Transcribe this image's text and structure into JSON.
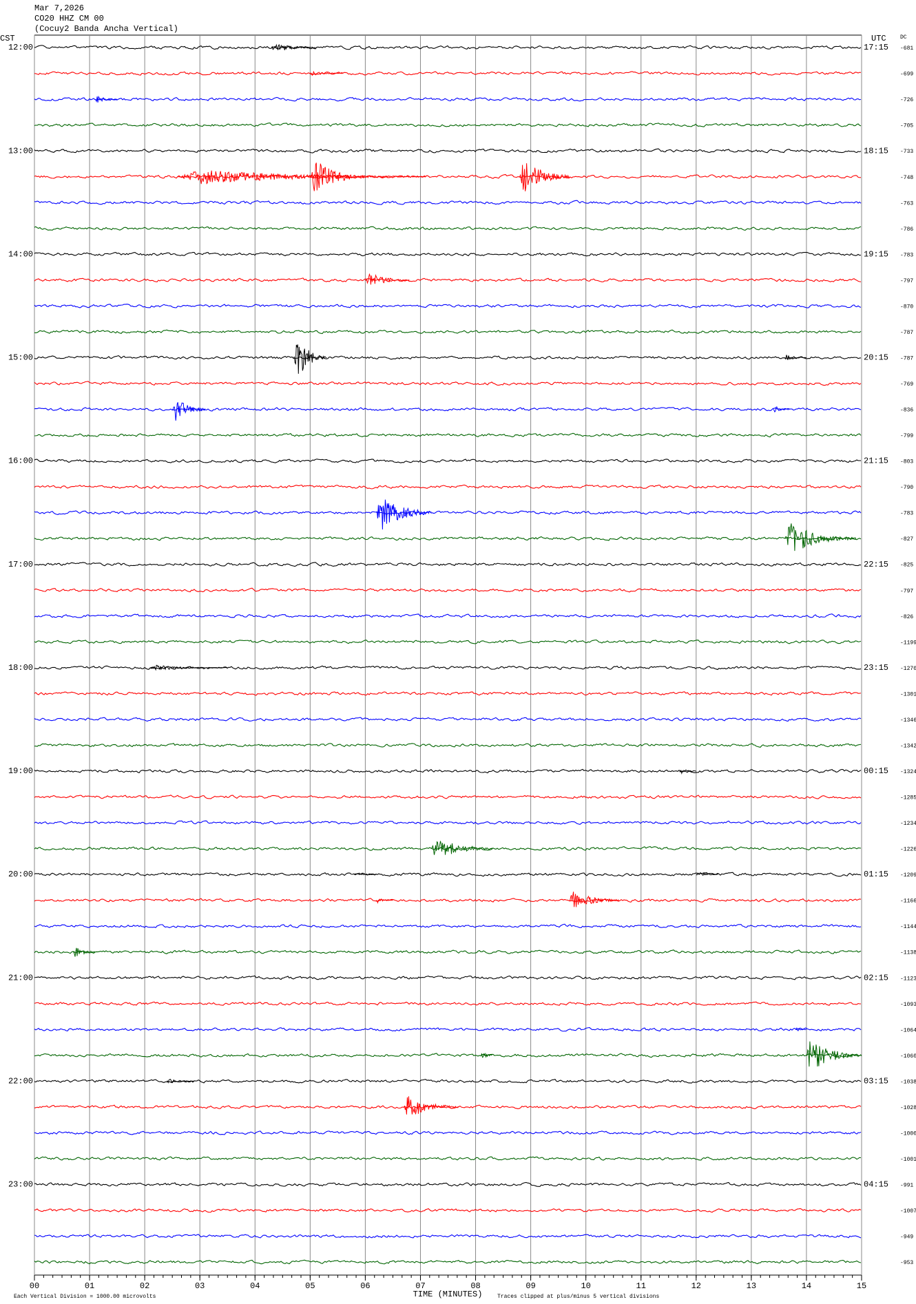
{
  "chart_data": {
    "type": "helicorder",
    "date": "Mar 7,2026",
    "station": "CO20 HHZ CM 00",
    "description": "(Cocuy2 Banda Ancha Vertical)",
    "left_axis_label": "CST",
    "right_axis_label": "UTC",
    "dc_label": "DC",
    "x_axis_label": "TIME (MINUTES)",
    "scale_note": "Each Vertical Division = 1000.00 microvolts",
    "clip_note": "Traces clipped at plus/minus 5 vertical divisions",
    "colors": [
      "#000000",
      "#ff0000",
      "#0000ff",
      "#006400"
    ],
    "left_labels": [
      "12:00",
      null,
      null,
      null,
      "13:00",
      null,
      null,
      null,
      "14:00",
      null,
      null,
      null,
      "15:00",
      null,
      null,
      null,
      "16:00",
      null,
      null,
      null,
      "17:00",
      null,
      null,
      null,
      "18:00",
      null,
      null,
      null,
      "19:00",
      null,
      null,
      null,
      "20:00",
      null,
      null,
      null,
      "21:00",
      null,
      null,
      null,
      "22:00",
      null,
      null,
      null,
      "23:00",
      null,
      null,
      null
    ],
    "right_labels": [
      "17:15",
      null,
      null,
      null,
      "18:15",
      null,
      null,
      null,
      "19:15",
      null,
      null,
      null,
      "20:15",
      null,
      null,
      null,
      "21:15",
      null,
      null,
      null,
      "22:15",
      null,
      null,
      null,
      "23:15",
      null,
      null,
      null,
      "00:15",
      null,
      null,
      null,
      "01:15",
      null,
      null,
      null,
      "02:15",
      null,
      null,
      null,
      "03:15",
      null,
      null,
      null,
      "04:15",
      null,
      null,
      null
    ],
    "dc": [
      -681,
      -699,
      -726,
      -705,
      -733,
      -748,
      -763,
      -786,
      -783,
      -797,
      -870,
      -787,
      -787,
      -769,
      -836,
      -799,
      -803,
      -790,
      -783,
      -827,
      -825,
      -797,
      -826,
      -1199,
      -1270,
      -1301,
      -1346,
      -1342,
      -1324,
      -1285,
      -1234,
      -1226,
      -1209,
      -1166,
      -1144,
      -1138,
      -1123,
      -1093,
      -1064,
      -1060,
      -1038,
      -1028,
      -1000,
      -1001,
      -991,
      -1007,
      -949,
      -953
    ],
    "xlim": [
      0,
      15
    ],
    "xticks": [
      {
        "value": 0,
        "label": "00"
      },
      {
        "value": 1,
        "label": "01"
      },
      {
        "value": 2,
        "label": "02"
      },
      {
        "value": 3,
        "label": "03"
      },
      {
        "value": 4,
        "label": "04"
      },
      {
        "value": 5,
        "label": "05"
      },
      {
        "value": 6,
        "label": "06"
      },
      {
        "value": 7,
        "label": "07"
      },
      {
        "value": 8,
        "label": "08"
      },
      {
        "value": 9,
        "label": "09"
      },
      10,
      11,
      12,
      13,
      14,
      15
    ],
    "events": [
      {
        "row": 0,
        "minute": 4.3,
        "duration": 0.8,
        "amplitude": 0.2
      },
      {
        "row": 1,
        "minute": 5.0,
        "duration": 0.6,
        "amplitude": 0.1
      },
      {
        "row": 2,
        "minute": 1.1,
        "duration": 0.4,
        "amplitude": 0.15
      },
      {
        "row": 5,
        "minute": 2.6,
        "duration": 4.5,
        "amplitude": 0.3
      },
      {
        "row": 5,
        "minute": 5.0,
        "duration": 1.0,
        "amplitude": 0.7
      },
      {
        "row": 5,
        "minute": 8.8,
        "duration": 0.9,
        "amplitude": 0.8
      },
      {
        "row": 9,
        "minute": 6.0,
        "duration": 0.8,
        "amplitude": 0.3
      },
      {
        "row": 12,
        "minute": 4.7,
        "duration": 0.6,
        "amplitude": 0.9
      },
      {
        "row": 12,
        "minute": 13.6,
        "duration": 0.4,
        "amplitude": 0.12
      },
      {
        "row": 14,
        "minute": 2.5,
        "duration": 0.6,
        "amplitude": 0.55
      },
      {
        "row": 14,
        "minute": 13.4,
        "duration": 0.3,
        "amplitude": 0.15
      },
      {
        "row": 18,
        "minute": 6.2,
        "duration": 1.0,
        "amplitude": 0.8
      },
      {
        "row": 19,
        "minute": 13.6,
        "duration": 1.3,
        "amplitude": 0.65
      },
      {
        "row": 24,
        "minute": 2.1,
        "duration": 1.4,
        "amplitude": 0.1
      },
      {
        "row": 28,
        "minute": 11.7,
        "duration": 0.3,
        "amplitude": 0.12
      },
      {
        "row": 31,
        "minute": 7.2,
        "duration": 1.1,
        "amplitude": 0.45
      },
      {
        "row": 32,
        "minute": 5.8,
        "duration": 0.4,
        "amplitude": 0.1
      },
      {
        "row": 32,
        "minute": 12.0,
        "duration": 0.4,
        "amplitude": 0.12
      },
      {
        "row": 33,
        "minute": 6.2,
        "duration": 0.3,
        "amplitude": 0.1
      },
      {
        "row": 33,
        "minute": 9.7,
        "duration": 0.9,
        "amplitude": 0.4
      },
      {
        "row": 35,
        "minute": 0.7,
        "duration": 0.4,
        "amplitude": 0.25
      },
      {
        "row": 38,
        "minute": 13.8,
        "duration": 0.2,
        "amplitude": 0.1
      },
      {
        "row": 39,
        "minute": 8.1,
        "duration": 0.2,
        "amplitude": 0.2
      },
      {
        "row": 39,
        "minute": 14.0,
        "duration": 1.0,
        "amplitude": 0.7
      },
      {
        "row": 40,
        "minute": 2.4,
        "duration": 0.5,
        "amplitude": 0.1
      },
      {
        "row": 41,
        "minute": 6.7,
        "duration": 1.0,
        "amplitude": 0.5
      }
    ]
  }
}
